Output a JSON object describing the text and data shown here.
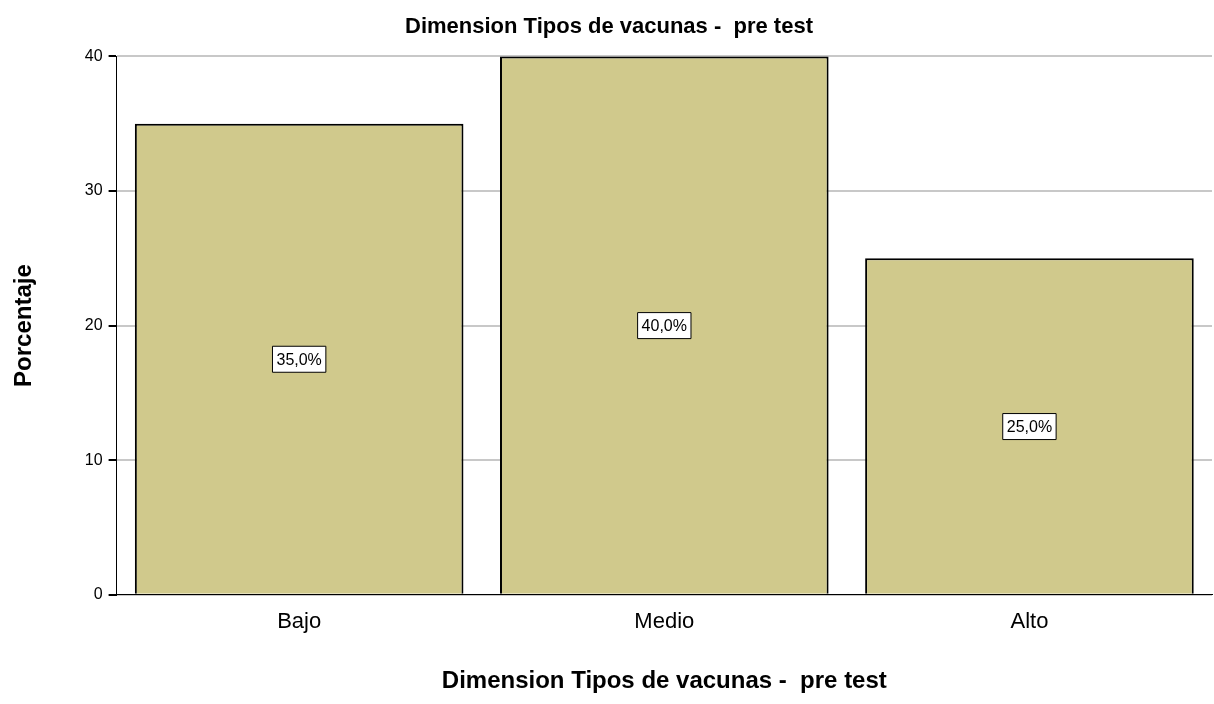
{
  "chart_data": {
    "type": "bar",
    "title": "Dimension Tipos de vacunas -  pre test",
    "xlabel": "Dimension Tipos de vacunas -  pre test",
    "ylabel": "Porcentaje",
    "categories": [
      "Bajo",
      "Medio",
      "Alto"
    ],
    "values": [
      35,
      40,
      25
    ],
    "value_labels": [
      "35,0%",
      "40,0%",
      "25,0%"
    ],
    "color": "#d0c98c",
    "ylim": [
      0,
      40
    ],
    "yticks": [
      0,
      10,
      20,
      30,
      40
    ],
    "grid": "y"
  }
}
